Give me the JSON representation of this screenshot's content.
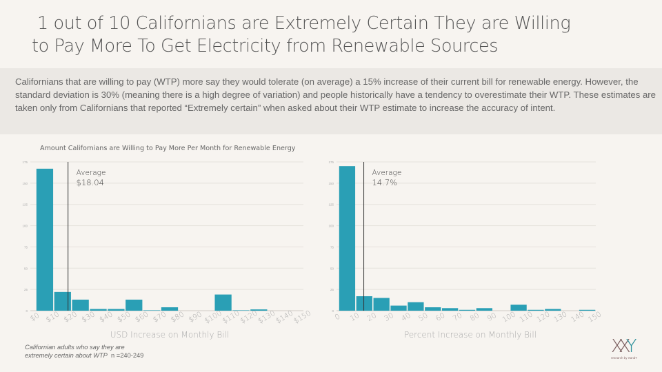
{
  "title": {
    "line1": "1 out of 10 Californians are Extremely Certain They are Willing",
    "line2": "to Pay More To Get Electricity from Renewable Sources"
  },
  "description": "Californians that are willing to pay (WTP) more say they would tolerate (on average) a 15% increase of their current bill for renewable energy. However, the standard deviation is 30% (meaning there is a high degree of variation) and people historically have a tendency to overestimate their WTP. These estimates are taken only from Californians that reported “Extremely certain” when asked about their WTP estimate to increase the accuracy of intent.",
  "chart_title": "Amount Californians are Willing to Pay More Per Month for Renewable Energy",
  "footnote": {
    "line1": "Californian adults who say they are",
    "line2": "extremely certain about WTP",
    "n": "n =240-249"
  },
  "logo": {
    "mark_x": "X",
    "mark_y": "Y",
    "tagline": "research by XandY"
  },
  "colors": {
    "bar": "#2a9fb5",
    "grid": "#e6e2dc",
    "avg_line": "#333333",
    "axis_text": "#aaaaaa"
  },
  "chart_data": [
    {
      "type": "bar",
      "title": "Amount Californians are Willing to Pay More Per Month for Renewable Energy",
      "xlabel": "USD Increase on Monthly Bill",
      "ylabel": "",
      "ylim": [
        0,
        175
      ],
      "yticks": [
        0,
        25,
        50,
        75,
        100,
        125,
        150,
        175
      ],
      "xlim": [
        0,
        150
      ],
      "xticks": [
        "$0",
        "$10",
        "$20",
        "$30",
        "$40",
        "$50",
        "$60",
        "$70",
        "$80",
        "$90",
        "$100",
        "$110",
        "$120",
        "$130",
        "$140",
        "$150"
      ],
      "bin_width": 10,
      "bins_start": [
        0,
        10,
        20,
        30,
        40,
        50,
        60,
        70,
        80,
        90,
        100,
        110,
        120,
        130,
        140
      ],
      "values": [
        167,
        22,
        13,
        2,
        2,
        13,
        0.5,
        4,
        0,
        0,
        19,
        0.5,
        1.5,
        0,
        0
      ],
      "average": {
        "value": 18.04,
        "label": "Average",
        "display": "$18.04"
      },
      "grid": true
    },
    {
      "type": "bar",
      "title": "",
      "xlabel": "Percent Increase on Monthly Bill",
      "ylabel": "",
      "ylim": [
        0,
        175
      ],
      "yticks": [
        0,
        25,
        50,
        75,
        100,
        125,
        150,
        175
      ],
      "xlim": [
        0,
        150
      ],
      "xticks": [
        "0",
        "10",
        "20",
        "30",
        "40",
        "50",
        "60",
        "70",
        "80",
        "90",
        "100",
        "110",
        "120",
        "130",
        "140",
        "150"
      ],
      "bin_width": 10,
      "bins_start": [
        0,
        10,
        20,
        30,
        40,
        50,
        60,
        70,
        80,
        90,
        100,
        110,
        120,
        130,
        140
      ],
      "values": [
        170,
        17,
        15,
        6,
        10,
        4,
        3,
        1,
        3,
        0,
        7,
        1,
        2,
        0,
        1
      ],
      "average": {
        "value": 14.7,
        "label": "Average",
        "display": "14.7%"
      },
      "grid": true
    }
  ]
}
